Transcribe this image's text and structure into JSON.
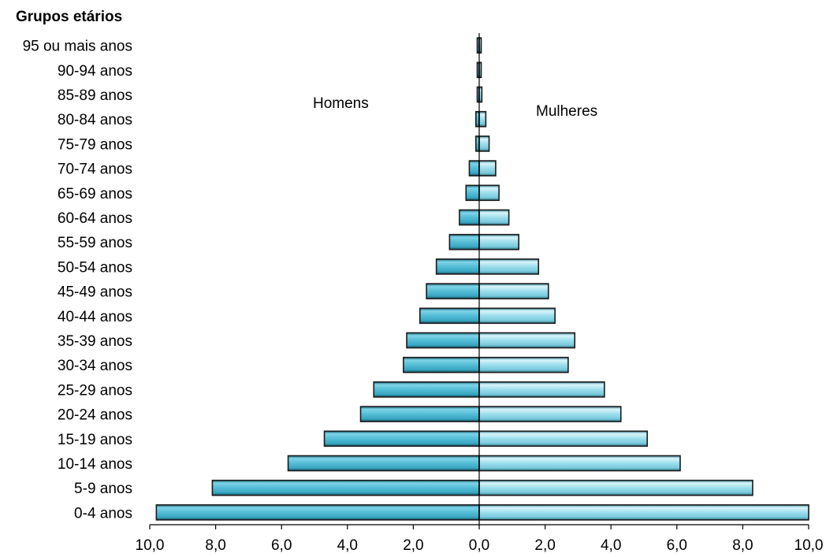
{
  "chart_data": {
    "type": "bar",
    "orientation": "horizontal-population-pyramid",
    "ylabel": "Grupos etários",
    "categories": [
      "0-4 anos",
      "5-9 anos",
      "10-14 anos",
      "15-19 anos",
      "20-24 anos",
      "25-29 anos",
      "30-34 anos",
      "35-39 anos",
      "40-44 anos",
      "45-49 anos",
      "50-54 anos",
      "55-59 anos",
      "60-64 anos",
      "65-69 anos",
      "70-74 anos",
      "75-79 anos",
      "80-84 anos",
      "85-89 anos",
      "90-94 anos",
      "95 ou mais anos"
    ],
    "series": [
      {
        "name": "Homens",
        "side": "left",
        "color": "#4fb6cc",
        "values": [
          9.8,
          8.1,
          5.8,
          4.7,
          3.6,
          3.2,
          2.3,
          2.2,
          1.8,
          1.6,
          1.3,
          0.9,
          0.6,
          0.4,
          0.3,
          0.1,
          0.1,
          0.05,
          0.03,
          0.02
        ]
      },
      {
        "name": "Mulheres",
        "side": "right",
        "color": "#8fd8e6",
        "values": [
          10.0,
          8.3,
          6.1,
          5.1,
          4.3,
          3.8,
          2.7,
          2.9,
          2.3,
          2.1,
          1.8,
          1.2,
          0.9,
          0.6,
          0.5,
          0.3,
          0.2,
          0.08,
          0.05,
          0.03
        ]
      }
    ],
    "xlim": [
      -10,
      10
    ],
    "xticks": [
      "10,0",
      "8,0",
      "6,0",
      "4,0",
      "2,0",
      "0,0",
      "2,0",
      "4,0",
      "6,0",
      "8,0",
      "10,0"
    ],
    "grid": false,
    "legend": "none"
  }
}
